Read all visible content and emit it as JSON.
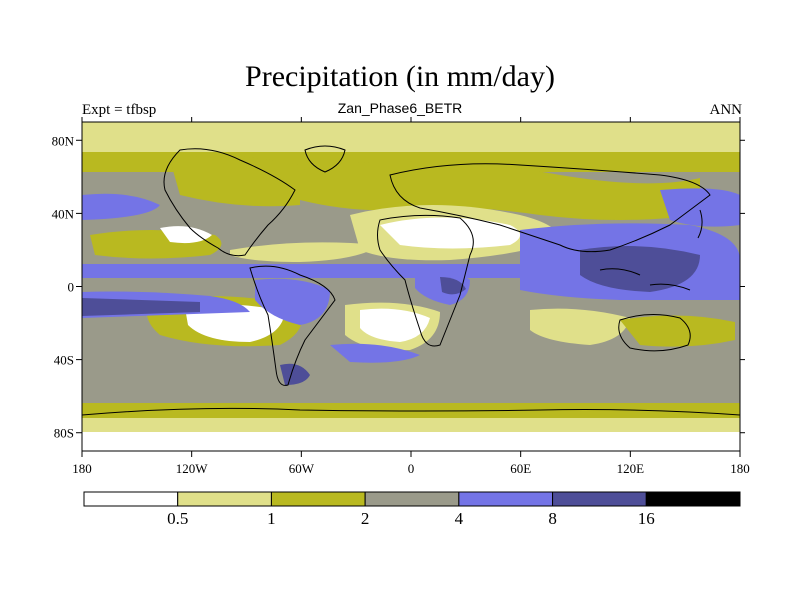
{
  "title": "Precipitation (in mm/day)",
  "subtitle": "Zan_Phase6_BETR",
  "left_label": "Expt = tfbsp",
  "right_label": "ANN",
  "map": {
    "lon_ticks": [
      "180",
      "120W",
      "60W",
      "0",
      "60E",
      "120E",
      "180"
    ],
    "lat_ticks": [
      "80N",
      "40N",
      "0",
      "40S",
      "80S"
    ]
  },
  "colorbar": {
    "colors": [
      "#ffffff",
      "#e0e08a",
      "#b9b920",
      "#9a9a8a",
      "#7474e6",
      "#4e4e98",
      "#000000"
    ],
    "labels": [
      "0.5",
      "1",
      "2",
      "4",
      "8",
      "16"
    ]
  }
}
